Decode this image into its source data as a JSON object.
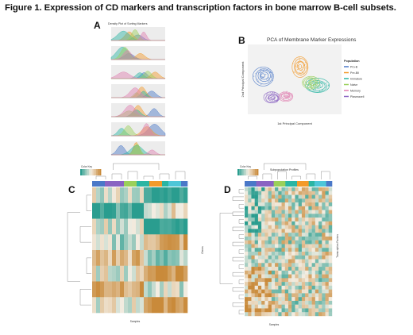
{
  "figure": {
    "title": "Figure 1. Expression of CD markers and transcription factors in bone marrow B-cell subsets.",
    "panels": {
      "A": {
        "letter": "A",
        "title": "Density Plot of Sorting Markers",
        "rows": 7
      },
      "B": {
        "letter": "B",
        "title": "PCA of Membrane Marker Expressions",
        "xlabel": "1st Principal Component",
        "ylabel": "2nd Principal Component",
        "note": "Explained variation",
        "legend_title": "Population",
        "legend": [
          {
            "label": "Pro-B",
            "color": "#4a78c8"
          },
          {
            "label": "Pre-BII",
            "color": "#f39a2a"
          },
          {
            "label": "Immature",
            "color": "#2bb5a3"
          },
          {
            "label": "Naive",
            "color": "#9bd05a"
          },
          {
            "label": "Memory",
            "color": "#e07fb0"
          },
          {
            "label": "Plasmacell",
            "color": "#8a63c2"
          }
        ]
      },
      "C": {
        "letter": "C",
        "colorkey": "Color Key",
        "xlabel": "Samples",
        "ylabel": "Genes"
      },
      "D": {
        "letter": "D",
        "colorkey": "Color Key",
        "title": "Subpopulation Profiles",
        "xlabel": "Samples",
        "ylabel": "Transcription Factors"
      }
    },
    "colors": {
      "low": "#2a9d8f",
      "mid": "#f3ede2",
      "high": "#c98a3a"
    }
  }
}
